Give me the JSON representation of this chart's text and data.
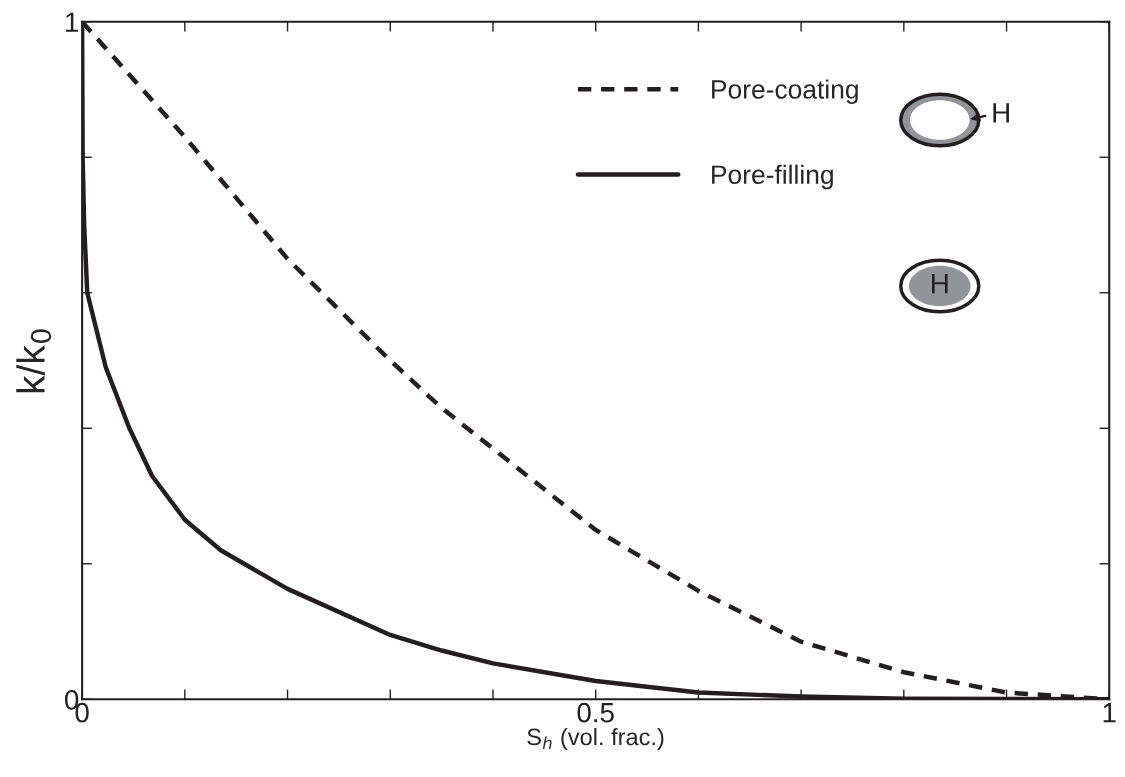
{
  "chart_data": {
    "type": "line",
    "xlabel": "S$_{h}$ (vol. frac.)",
    "ylabel": "k/k$_{0}$",
    "xlim": [
      0,
      1
    ],
    "ylim": [
      0,
      1
    ],
    "xticks": [
      0,
      {
        "value": 0.1,
        "label": null
      },
      {
        "value": 0.2,
        "label": null
      },
      {
        "value": 0.3,
        "label": null
      },
      {
        "value": 0.4,
        "label": null
      },
      0.5,
      {
        "value": 0.6,
        "label": null
      },
      {
        "value": 0.7,
        "label": null
      },
      {
        "value": 0.8,
        "label": null
      },
      {
        "value": 0.9,
        "label": null
      },
      1
    ],
    "yticks": [
      0,
      {
        "value": 0.2,
        "label": null
      },
      {
        "value": 0.4,
        "label": null
      },
      {
        "value": 0.6,
        "label": null
      },
      {
        "value": 0.8,
        "label": null
      },
      1
    ],
    "grid": false,
    "legend": "top right",
    "annotations": [
      "H",
      "H"
    ],
    "series": [
      {
        "name": "Pore-coating",
        "color": "#231f20",
        "line_style": "dashed",
        "x": [
          0,
          0.1,
          0.2,
          0.3,
          0.35,
          0.4,
          0.5,
          0.6,
          0.7,
          0.8,
          0.9,
          1
        ],
        "values": [
          1,
          0.83,
          0.65,
          0.5,
          0.43,
          0.37,
          0.25,
          0.16,
          0.085,
          0.04,
          0.01,
          0
        ]
      },
      {
        "name": "Pore-filling",
        "color": "#231f20",
        "line_style": "solid",
        "x": [
          0,
          0.0005,
          0.002,
          0.005,
          0.023,
          0.046,
          0.068,
          0.1,
          0.135,
          0.2,
          0.3,
          0.35,
          0.4,
          0.5,
          0.6,
          0.7,
          0.8,
          1
        ],
        "values": [
          1,
          0.8,
          0.7,
          0.6,
          0.49,
          0.4,
          0.33,
          0.265,
          0.22,
          0.163,
          0.095,
          0.072,
          0.053,
          0.027,
          0.01,
          0.004,
          0.001,
          0
        ]
      }
    ]
  }
}
